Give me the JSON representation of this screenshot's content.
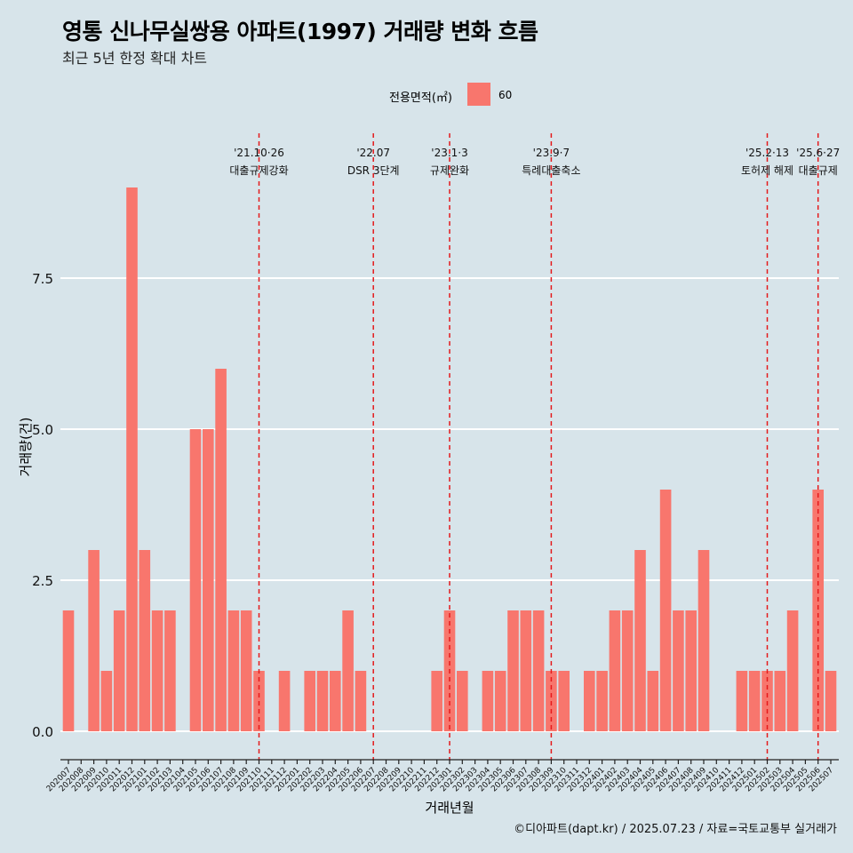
{
  "title": "영통 신나무실쌍용 아파트(1997) 거래량 변화 흐름",
  "subtitle": "최근 5년 한정 확대 차트",
  "legend": {
    "title": "전용면적(㎡)",
    "label": "60"
  },
  "caption": "©디아파트(dapt.kr) / 2025.07.23 / 자료=국토교통부 실거래가",
  "colors": {
    "bar": "#f8766d",
    "background": "#d7e4ea",
    "grid": "#ffffff",
    "vline": "#e41a1c"
  },
  "chart_data": {
    "type": "bar",
    "xlabel": "거래년월",
    "ylabel": "거래량(건)",
    "ylim": [
      -0.5,
      9.5
    ],
    "yticks": [
      0.0,
      2.5,
      5.0,
      7.5
    ],
    "ytick_labels": [
      "0.0",
      "2.5",
      "5.0",
      "7.5"
    ],
    "grid": "horizontal",
    "legend_position": "top",
    "categories": [
      "202007",
      "202008",
      "202009",
      "202010",
      "202011",
      "202012",
      "202101",
      "202102",
      "202103",
      "202104",
      "202105",
      "202106",
      "202107",
      "202108",
      "202109",
      "202110",
      "202111",
      "202112",
      "202201",
      "202202",
      "202203",
      "202204",
      "202205",
      "202206",
      "202207",
      "202208",
      "202209",
      "202210",
      "202211",
      "202212",
      "202301",
      "202302",
      "202303",
      "202304",
      "202305",
      "202306",
      "202307",
      "202308",
      "202309",
      "202310",
      "202311",
      "202312",
      "202401",
      "202402",
      "202403",
      "202404",
      "202405",
      "202406",
      "202407",
      "202408",
      "202409",
      "202410",
      "202411",
      "202412",
      "202501",
      "202502",
      "202503",
      "202504",
      "202505",
      "202506",
      "202507"
    ],
    "series": [
      {
        "name": "60",
        "values": [
          2,
          0,
          3,
          1,
          2,
          9,
          3,
          2,
          2,
          0,
          5,
          5,
          6,
          2,
          2,
          1,
          0,
          1,
          0,
          1,
          1,
          1,
          2,
          1,
          0,
          0,
          0,
          0,
          0,
          1,
          2,
          1,
          0,
          1,
          1,
          2,
          2,
          2,
          1,
          1,
          0,
          1,
          1,
          2,
          2,
          3,
          1,
          4,
          2,
          2,
          3,
          0,
          0,
          1,
          1,
          1,
          1,
          2,
          0,
          4,
          1
        ]
      }
    ],
    "annotations": [
      {
        "month": "202110",
        "date": "'21.10·26",
        "text": "대출규제강화"
      },
      {
        "month": "202207",
        "date": "'22.07",
        "text": "DSR 3단계"
      },
      {
        "month": "202301",
        "date": "'23.1·3",
        "text": "규제완화"
      },
      {
        "month": "202309",
        "date": "'23.9·7",
        "text": "특례대출축소"
      },
      {
        "month": "202502",
        "date": "'25.2·13",
        "text": "토허제 해제"
      },
      {
        "month": "202506",
        "date": "'25.6·27",
        "text": "대출규제"
      }
    ]
  }
}
